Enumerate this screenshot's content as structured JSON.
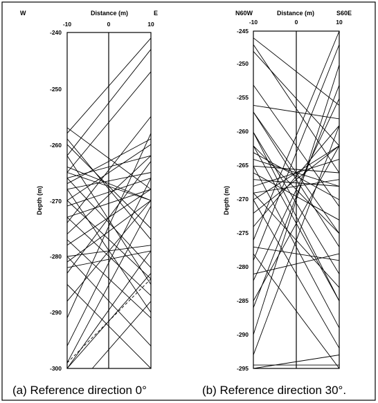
{
  "figure": {
    "panels": [
      {
        "id": "a",
        "caption": "(a) Reference direction 0°",
        "left_dir": "W",
        "right_dir": "E",
        "xlabel": "Distance (m)",
        "ylabel": "Depth (m)",
        "xticks": [
          "-10",
          "0",
          "10"
        ],
        "yticks": [
          "-240",
          "-250",
          "-260",
          "-270",
          "-280",
          "-290",
          "-300"
        ]
      },
      {
        "id": "b",
        "caption": "(b) Reference direction 30°.",
        "left_dir": "N60W",
        "right_dir": "S60E",
        "xlabel": "Distance (m)",
        "ylabel": "Depth (m)",
        "xticks": [
          "-10",
          "0",
          "10"
        ],
        "yticks": [
          "-245",
          "-250",
          "-255",
          "-260",
          "-265",
          "-270",
          "-275",
          "-280",
          "-285",
          "-290",
          "-295"
        ]
      }
    ]
  },
  "chart_data": [
    {
      "type": "line",
      "title": "",
      "xlabel": "Distance (m)",
      "ylabel": "Depth (m)",
      "xlim": [
        -10,
        10
      ],
      "ylim": [
        -300,
        -240
      ],
      "series": [
        {
          "x": [
            -10,
            10
          ],
          "y": [
            -258,
            -241
          ]
        },
        {
          "x": [
            -10,
            10
          ],
          "y": [
            -262,
            -243
          ]
        },
        {
          "x": [
            -10,
            10
          ],
          "y": [
            -265,
            -247
          ]
        },
        {
          "x": [
            -10,
            10
          ],
          "y": [
            -257,
            -268
          ]
        },
        {
          "x": [
            -10,
            10
          ],
          "y": [
            -259,
            -277
          ]
        },
        {
          "x": [
            -10,
            10
          ],
          "y": [
            -264,
            -270
          ]
        },
        {
          "x": [
            -10,
            10
          ],
          "y": [
            -266,
            -262
          ]
        },
        {
          "x": [
            -10,
            10
          ],
          "y": [
            -267,
            -259
          ]
        },
        {
          "x": [
            -10,
            10
          ],
          "y": [
            -268,
            -265
          ]
        },
        {
          "x": [
            -10,
            10
          ],
          "y": [
            -270,
            -260
          ]
        },
        {
          "x": [
            -10,
            10
          ],
          "y": [
            -271,
            -266
          ]
        },
        {
          "x": [
            -10,
            10
          ],
          "y": [
            -273,
            -268
          ]
        },
        {
          "x": [
            -10,
            10
          ],
          "y": [
            -274,
            -255
          ]
        },
        {
          "x": [
            -10,
            10
          ],
          "y": [
            -276,
            -262
          ]
        },
        {
          "x": [
            -10,
            10
          ],
          "y": [
            -278,
            -268
          ]
        },
        {
          "x": [
            -10,
            10
          ],
          "y": [
            -280,
            -278
          ]
        },
        {
          "x": [
            -10,
            10
          ],
          "y": [
            -281,
            -270
          ]
        },
        {
          "x": [
            -10,
            10
          ],
          "y": [
            -282,
            -279
          ]
        },
        {
          "x": [
            -10,
            10
          ],
          "y": [
            -283,
            -263
          ]
        },
        {
          "x": [
            -10,
            10
          ],
          "y": [
            -266,
            -282
          ]
        },
        {
          "x": [
            -10,
            10
          ],
          "y": [
            -262,
            -285
          ]
        },
        {
          "x": [
            -10,
            10
          ],
          "y": [
            -265,
            -270
          ]
        },
        {
          "x": [
            -10,
            10
          ],
          "y": [
            -260,
            -275
          ]
        },
        {
          "x": [
            -10,
            10
          ],
          "y": [
            -273,
            -287
          ]
        },
        {
          "x": [
            -10,
            10
          ],
          "y": [
            -277,
            -291
          ]
        },
        {
          "x": [
            -10,
            10
          ],
          "y": [
            -280,
            -296
          ]
        },
        {
          "x": [
            -10,
            10
          ],
          "y": [
            -285,
            -300
          ]
        },
        {
          "x": [
            -10,
            10
          ],
          "y": [
            -296,
            -266
          ]
        },
        {
          "x": [
            -10,
            10
          ],
          "y": [
            -299,
            -271
          ]
        },
        {
          "x": [
            -10,
            10
          ],
          "y": [
            -300,
            -279
          ]
        },
        {
          "x": [
            -10,
            10
          ],
          "y": [
            -291,
            -258
          ]
        },
        {
          "x": [
            -10,
            10
          ],
          "y": [
            -300,
            -283
          ]
        },
        {
          "x": [
            -10,
            10
          ],
          "y": [
            -288,
            -270
          ]
        },
        {
          "x": [
            -10,
            10
          ],
          "y": [
            -268,
            -290
          ]
        },
        {
          "x": [
            -10,
            10
          ],
          "y": [
            -270,
            -284
          ]
        },
        {
          "x": [
            -4,
            10
          ],
          "y": [
            -300,
            -288
          ]
        },
        {
          "x": [
            -10,
            10
          ],
          "y": [
            -299,
            -284
          ],
          "dashed": true
        }
      ]
    },
    {
      "type": "line",
      "title": "",
      "xlabel": "Distance (m)",
      "ylabel": "Depth (m)",
      "xlim": [
        -10,
        10
      ],
      "ylim": [
        -295,
        -245
      ],
      "series": [
        {
          "x": [
            -10,
            10
          ],
          "y": [
            -246,
            -256
          ]
        },
        {
          "x": [
            -10,
            10
          ],
          "y": [
            -247,
            -266
          ]
        },
        {
          "x": [
            -10,
            10
          ],
          "y": [
            -248,
            -262
          ]
        },
        {
          "x": [
            -10,
            10
          ],
          "y": [
            -253,
            -271
          ]
        },
        {
          "x": [
            -10,
            10
          ],
          "y": [
            -257,
            -275
          ]
        },
        {
          "x": [
            -10,
            10
          ],
          "y": [
            -260,
            -281
          ]
        },
        {
          "x": [
            -10,
            10
          ],
          "y": [
            -262,
            -285
          ]
        },
        {
          "x": [
            -10,
            10
          ],
          "y": [
            -263,
            -270
          ]
        },
        {
          "x": [
            -10,
            10
          ],
          "y": [
            -264,
            -268
          ]
        },
        {
          "x": [
            -10,
            10
          ],
          "y": [
            -265,
            -266
          ]
        },
        {
          "x": [
            -10,
            10
          ],
          "y": [
            -266,
            -273
          ]
        },
        {
          "x": [
            -10,
            10
          ],
          "y": [
            -267,
            -268
          ]
        },
        {
          "x": [
            -10,
            10
          ],
          "y": [
            -268,
            -264
          ]
        },
        {
          "x": [
            -10,
            10
          ],
          "y": [
            -269,
            -267
          ]
        },
        {
          "x": [
            -10,
            10
          ],
          "y": [
            -270,
            -262
          ]
        },
        {
          "x": [
            -10,
            10
          ],
          "y": [
            -272,
            -262
          ]
        },
        {
          "x": [
            -10,
            10
          ],
          "y": [
            -274,
            -259
          ]
        },
        {
          "x": [
            -10,
            10
          ],
          "y": [
            -256,
            -258
          ]
        },
        {
          "x": [
            -10,
            10
          ],
          "y": [
            -276,
            -245
          ]
        },
        {
          "x": [
            -10,
            10
          ],
          "y": [
            -279,
            -247
          ]
        },
        {
          "x": [
            -10,
            10
          ],
          "y": [
            -282,
            -255
          ]
        },
        {
          "x": [
            -10,
            10
          ],
          "y": [
            -286,
            -253
          ]
        },
        {
          "x": [
            -10,
            10
          ],
          "y": [
            -290,
            -250
          ]
        },
        {
          "x": [
            -10,
            10
          ],
          "y": [
            -277,
            -279
          ]
        },
        {
          "x": [
            -10,
            10
          ],
          "y": [
            -278,
            -295
          ]
        },
        {
          "x": [
            -10,
            10
          ],
          "y": [
            -270,
            -292
          ]
        },
        {
          "x": [
            -10,
            10
          ],
          "y": [
            -265,
            -289
          ]
        },
        {
          "x": [
            -10,
            10
          ],
          "y": [
            -260,
            -285
          ]
        },
        {
          "x": [
            -10,
            10
          ],
          "y": [
            -257,
            -277
          ]
        },
        {
          "x": [
            -10,
            10
          ],
          "y": [
            -281,
            -278
          ]
        },
        {
          "x": [
            -10,
            10
          ],
          "y": [
            -295,
            -293
          ]
        },
        {
          "x": [
            -10,
            10
          ],
          "y": [
            -294.5,
            -294.5
          ]
        },
        {
          "x": [
            -10,
            10
          ],
          "y": [
            -269,
            -283
          ]
        },
        {
          "x": [
            -10,
            10
          ],
          "y": [
            -262,
            -275
          ]
        },
        {
          "x": [
            -10,
            10
          ],
          "y": [
            -293,
            -259
          ]
        },
        {
          "x": [
            -10,
            10
          ],
          "y": [
            -285,
            -262
          ]
        }
      ]
    }
  ]
}
